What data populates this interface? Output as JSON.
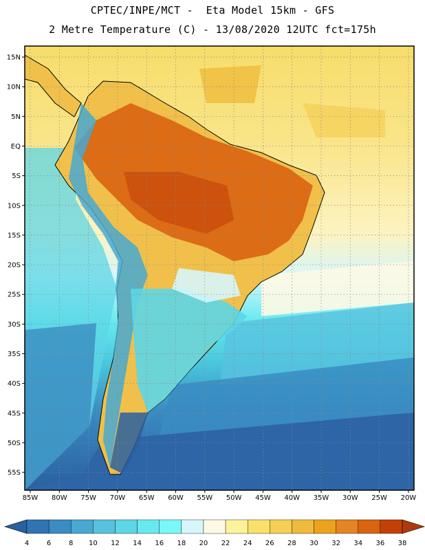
{
  "title": {
    "line1": "CPTEC/INPE/MCT -  Eta Model 15km - GFS",
    "line2": "2 Metre Temperature (C) - 13/08/2020 12UTC fct=175h"
  },
  "map": {
    "region": "South America",
    "variable": "2 Metre Temperature",
    "units": "C",
    "lat_labels": [
      "15N",
      "10N",
      "5N",
      "EQ",
      "5S",
      "10S",
      "15S",
      "20S",
      "25S",
      "30S",
      "35S",
      "40S",
      "45S",
      "50S",
      "55S"
    ],
    "lon_labels": [
      "85W",
      "80W",
      "75W",
      "70W",
      "65W",
      "60W",
      "55W",
      "50W",
      "45W",
      "40W",
      "35W",
      "30W",
      "25W",
      "20W"
    ]
  },
  "colorbar": {
    "ticks": [
      "4",
      "6",
      "8",
      "10",
      "12",
      "14",
      "16",
      "18",
      "20",
      "22",
      "24",
      "26",
      "28",
      "30",
      "32",
      "34",
      "36",
      "38"
    ],
    "colors": [
      "#2a5fa0",
      "#3174b3",
      "#3a8cc2",
      "#48a8d1",
      "#58c2de",
      "#5dd6e6",
      "#66eaef",
      "#7af7f7",
      "#d6f6fb",
      "#fdf9e4",
      "#fbf29a",
      "#f9e06b",
      "#f5cf54",
      "#efbb3c",
      "#eda21e",
      "#e58422",
      "#d9630f",
      "#c24108",
      "#ad3b0c"
    ]
  }
}
